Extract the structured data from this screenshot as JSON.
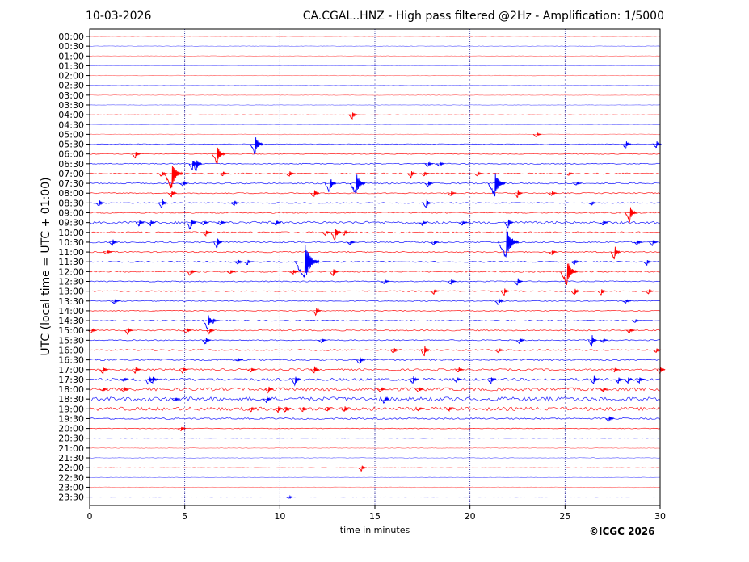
{
  "header": {
    "date": "10-03-2026",
    "title": "CA.CGAL..HNZ - High pass filtered @2Hz - Amplification: 1/5000"
  },
  "footer": {
    "copyright": "©ICGC 2026"
  },
  "chart_data": {
    "type": "helicorder",
    "xlabel": "time in minutes",
    "ylabel": "UTC (local time = UTC + 01:00)",
    "xlim": [
      0,
      30
    ],
    "x_ticks": [
      0,
      5,
      10,
      15,
      20,
      25,
      30
    ],
    "grid": "vertical dotted lines every 5 minutes",
    "trace_colors": [
      "#ff0000",
      "#0000ff"
    ],
    "row_labels": [
      "00:00",
      "00:30",
      "01:00",
      "01:30",
      "02:00",
      "02:30",
      "03:00",
      "03:30",
      "04:00",
      "04:30",
      "05:00",
      "05:30",
      "06:00",
      "06:30",
      "07:00",
      "07:30",
      "08:00",
      "08:30",
      "09:00",
      "09:30",
      "10:00",
      "10:30",
      "11:00",
      "11:30",
      "12:00",
      "12:30",
      "13:00",
      "13:30",
      "14:00",
      "14:30",
      "15:00",
      "15:30",
      "16:00",
      "16:30",
      "17:00",
      "17:30",
      "18:00",
      "18:30",
      "19:00",
      "19:30",
      "20:00",
      "20:30",
      "21:00",
      "21:30",
      "22:00",
      "22:30",
      "23:00",
      "23:30"
    ],
    "noise_level": [
      0.3,
      0.3,
      0.3,
      0.3,
      0.3,
      0.3,
      0.3,
      0.3,
      0.4,
      0.3,
      0.4,
      0.5,
      0.5,
      0.6,
      0.8,
      0.8,
      0.7,
      0.7,
      0.8,
      1.5,
      1.0,
      0.9,
      0.8,
      0.8,
      0.9,
      0.7,
      0.7,
      0.6,
      0.6,
      0.7,
      0.8,
      0.7,
      0.9,
      1.0,
      1.2,
      1.6,
      2.0,
      2.5,
      2.2,
      1.0,
      0.5,
      0.4,
      0.4,
      0.4,
      0.4,
      0.3,
      0.3,
      0.3
    ],
    "events": [
      {
        "row": 8,
        "t": 13.8,
        "amp": 6
      },
      {
        "row": 10,
        "t": 23.5,
        "amp": 4
      },
      {
        "row": 11,
        "t": 8.7,
        "amp": 14
      },
      {
        "row": 11,
        "t": 28.2,
        "amp": 7
      },
      {
        "row": 11,
        "t": 29.8,
        "amp": 6
      },
      {
        "row": 12,
        "t": 2.4,
        "amp": 6
      },
      {
        "row": 12,
        "t": 6.7,
        "amp": 14
      },
      {
        "row": 13,
        "t": 5.4,
        "amp": 9
      },
      {
        "row": 13,
        "t": 5.6,
        "amp": 10
      },
      {
        "row": 13,
        "t": 17.8,
        "amp": 4
      },
      {
        "row": 13,
        "t": 18.4,
        "amp": 4
      },
      {
        "row": 14,
        "t": 3.8,
        "amp": 5
      },
      {
        "row": 14,
        "t": 4.3,
        "amp": 20
      },
      {
        "row": 14,
        "t": 7.0,
        "amp": 4
      },
      {
        "row": 14,
        "t": 10.5,
        "amp": 5
      },
      {
        "row": 14,
        "t": 16.9,
        "amp": 6
      },
      {
        "row": 14,
        "t": 17.6,
        "amp": 4
      },
      {
        "row": 14,
        "t": 20.4,
        "amp": 4
      },
      {
        "row": 14,
        "t": 25.2,
        "amp": 3
      },
      {
        "row": 15,
        "t": 4.9,
        "amp": 4
      },
      {
        "row": 15,
        "t": 12.6,
        "amp": 12
      },
      {
        "row": 15,
        "t": 14.0,
        "amp": 16
      },
      {
        "row": 15,
        "t": 17.8,
        "amp": 5
      },
      {
        "row": 15,
        "t": 21.3,
        "amp": 18
      },
      {
        "row": 15,
        "t": 25.6,
        "amp": 3
      },
      {
        "row": 16,
        "t": 4.3,
        "amp": 5
      },
      {
        "row": 16,
        "t": 11.8,
        "amp": 6
      },
      {
        "row": 16,
        "t": 19.0,
        "amp": 4
      },
      {
        "row": 16,
        "t": 22.5,
        "amp": 6
      },
      {
        "row": 16,
        "t": 24.3,
        "amp": 4
      },
      {
        "row": 17,
        "t": 0.5,
        "amp": 5
      },
      {
        "row": 17,
        "t": 3.8,
        "amp": 8
      },
      {
        "row": 17,
        "t": 7.6,
        "amp": 4
      },
      {
        "row": 17,
        "t": 17.7,
        "amp": 7
      },
      {
        "row": 17,
        "t": 26.4,
        "amp": 3
      },
      {
        "row": 18,
        "t": 28.4,
        "amp": 12
      },
      {
        "row": 19,
        "t": 2.6,
        "amp": 5
      },
      {
        "row": 19,
        "t": 3.2,
        "amp": 5
      },
      {
        "row": 19,
        "t": 5.3,
        "amp": 10
      },
      {
        "row": 19,
        "t": 6.0,
        "amp": 4
      },
      {
        "row": 19,
        "t": 6.9,
        "amp": 4
      },
      {
        "row": 19,
        "t": 9.8,
        "amp": 4
      },
      {
        "row": 19,
        "t": 17.5,
        "amp": 4
      },
      {
        "row": 19,
        "t": 19.6,
        "amp": 4
      },
      {
        "row": 19,
        "t": 22.0,
        "amp": 8
      },
      {
        "row": 19,
        "t": 27.0,
        "amp": 4
      },
      {
        "row": 20,
        "t": 6.1,
        "amp": 5
      },
      {
        "row": 20,
        "t": 12.4,
        "amp": 4
      },
      {
        "row": 20,
        "t": 12.9,
        "amp": 11
      },
      {
        "row": 20,
        "t": 13.4,
        "amp": 4
      },
      {
        "row": 21,
        "t": 1.2,
        "amp": 5
      },
      {
        "row": 21,
        "t": 6.7,
        "amp": 9
      },
      {
        "row": 21,
        "t": 13.7,
        "amp": 4
      },
      {
        "row": 21,
        "t": 18.1,
        "amp": 4
      },
      {
        "row": 21,
        "t": 21.9,
        "amp": 22
      },
      {
        "row": 21,
        "t": 28.8,
        "amp": 4
      },
      {
        "row": 21,
        "t": 29.6,
        "amp": 5
      },
      {
        "row": 22,
        "t": 0.9,
        "amp": 4
      },
      {
        "row": 22,
        "t": 24.3,
        "amp": 4
      },
      {
        "row": 22,
        "t": 27.6,
        "amp": 10
      },
      {
        "row": 23,
        "t": 7.8,
        "amp": 4
      },
      {
        "row": 23,
        "t": 8.3,
        "amp": 4
      },
      {
        "row": 23,
        "t": 11.3,
        "amp": 26
      },
      {
        "row": 23,
        "t": 25.5,
        "amp": 4
      },
      {
        "row": 23,
        "t": 29.3,
        "amp": 5
      },
      {
        "row": 24,
        "t": 5.3,
        "amp": 6
      },
      {
        "row": 24,
        "t": 7.4,
        "amp": 3
      },
      {
        "row": 24,
        "t": 10.7,
        "amp": 4
      },
      {
        "row": 24,
        "t": 12.8,
        "amp": 7
      },
      {
        "row": 24,
        "t": 25.1,
        "amp": 18
      },
      {
        "row": 25,
        "t": 15.5,
        "amp": 4
      },
      {
        "row": 25,
        "t": 19.0,
        "amp": 5
      },
      {
        "row": 25,
        "t": 22.5,
        "amp": 6
      },
      {
        "row": 26,
        "t": 18.1,
        "amp": 4
      },
      {
        "row": 26,
        "t": 21.8,
        "amp": 6
      },
      {
        "row": 26,
        "t": 25.5,
        "amp": 6
      },
      {
        "row": 26,
        "t": 26.9,
        "amp": 5
      },
      {
        "row": 26,
        "t": 29.4,
        "amp": 4
      },
      {
        "row": 27,
        "t": 1.3,
        "amp": 4
      },
      {
        "row": 27,
        "t": 21.5,
        "amp": 6
      },
      {
        "row": 27,
        "t": 28.2,
        "amp": 3
      },
      {
        "row": 28,
        "t": 11.9,
        "amp": 6
      },
      {
        "row": 29,
        "t": 6.2,
        "amp": 12
      },
      {
        "row": 29,
        "t": 6.5,
        "amp": 4
      },
      {
        "row": 29,
        "t": 28.7,
        "amp": 3
      },
      {
        "row": 30,
        "t": 0.1,
        "amp": 4
      },
      {
        "row": 30,
        "t": 2.0,
        "amp": 5
      },
      {
        "row": 30,
        "t": 5.1,
        "amp": 4
      },
      {
        "row": 30,
        "t": 6.3,
        "amp": 5
      },
      {
        "row": 30,
        "t": 28.4,
        "amp": 4
      },
      {
        "row": 31,
        "t": 6.1,
        "amp": 6
      },
      {
        "row": 31,
        "t": 12.2,
        "amp": 4
      },
      {
        "row": 31,
        "t": 22.6,
        "amp": 5
      },
      {
        "row": 31,
        "t": 26.4,
        "amp": 9
      },
      {
        "row": 31,
        "t": 27.0,
        "amp": 3
      },
      {
        "row": 32,
        "t": 16.0,
        "amp": 5
      },
      {
        "row": 32,
        "t": 17.6,
        "amp": 9
      },
      {
        "row": 32,
        "t": 21.5,
        "amp": 4
      },
      {
        "row": 32,
        "t": 29.8,
        "amp": 4
      },
      {
        "row": 33,
        "t": 14.2,
        "amp": 7
      },
      {
        "row": 33,
        "t": 7.8,
        "amp": 2
      },
      {
        "row": 34,
        "t": 0.7,
        "amp": 6
      },
      {
        "row": 34,
        "t": 2.4,
        "amp": 6
      },
      {
        "row": 34,
        "t": 4.9,
        "amp": 5
      },
      {
        "row": 34,
        "t": 8.5,
        "amp": 4
      },
      {
        "row": 34,
        "t": 11.8,
        "amp": 6
      },
      {
        "row": 34,
        "t": 19.4,
        "amp": 4
      },
      {
        "row": 34,
        "t": 27.6,
        "amp": 4
      },
      {
        "row": 34,
        "t": 30.0,
        "amp": 6
      },
      {
        "row": 35,
        "t": 1.8,
        "amp": 3
      },
      {
        "row": 35,
        "t": 3.1,
        "amp": 8
      },
      {
        "row": 35,
        "t": 3.3,
        "amp": 6
      },
      {
        "row": 35,
        "t": 10.8,
        "amp": 8
      },
      {
        "row": 35,
        "t": 17.0,
        "amp": 7
      },
      {
        "row": 35,
        "t": 19.3,
        "amp": 4
      },
      {
        "row": 35,
        "t": 21.1,
        "amp": 6
      },
      {
        "row": 35,
        "t": 26.5,
        "amp": 7
      },
      {
        "row": 35,
        "t": 27.8,
        "amp": 5
      },
      {
        "row": 35,
        "t": 28.3,
        "amp": 5
      },
      {
        "row": 35,
        "t": 28.9,
        "amp": 5
      },
      {
        "row": 36,
        "t": 0.7,
        "amp": 3
      },
      {
        "row": 36,
        "t": 1.8,
        "amp": 4
      },
      {
        "row": 36,
        "t": 9.4,
        "amp": 5
      },
      {
        "row": 36,
        "t": 15.3,
        "amp": 4
      },
      {
        "row": 36,
        "t": 17.3,
        "amp": 4
      },
      {
        "row": 36,
        "t": 27.0,
        "amp": 3
      },
      {
        "row": 37,
        "t": 9.3,
        "amp": 5
      },
      {
        "row": 37,
        "t": 15.5,
        "amp": 7
      },
      {
        "row": 37,
        "t": 4.5,
        "amp": 3
      },
      {
        "row": 38,
        "t": 8.5,
        "amp": 4
      },
      {
        "row": 38,
        "t": 9.9,
        "amp": 5
      },
      {
        "row": 38,
        "t": 10.3,
        "amp": 5
      },
      {
        "row": 38,
        "t": 11.2,
        "amp": 4
      },
      {
        "row": 38,
        "t": 12.5,
        "amp": 4
      },
      {
        "row": 38,
        "t": 13.4,
        "amp": 5
      },
      {
        "row": 38,
        "t": 17.3,
        "amp": 3
      },
      {
        "row": 38,
        "t": 18.9,
        "amp": 3
      },
      {
        "row": 39,
        "t": 27.3,
        "amp": 5
      },
      {
        "row": 40,
        "t": 4.8,
        "amp": 4
      },
      {
        "row": 44,
        "t": 14.3,
        "amp": 5
      },
      {
        "row": 47,
        "t": 10.5,
        "amp": 2
      }
    ]
  }
}
